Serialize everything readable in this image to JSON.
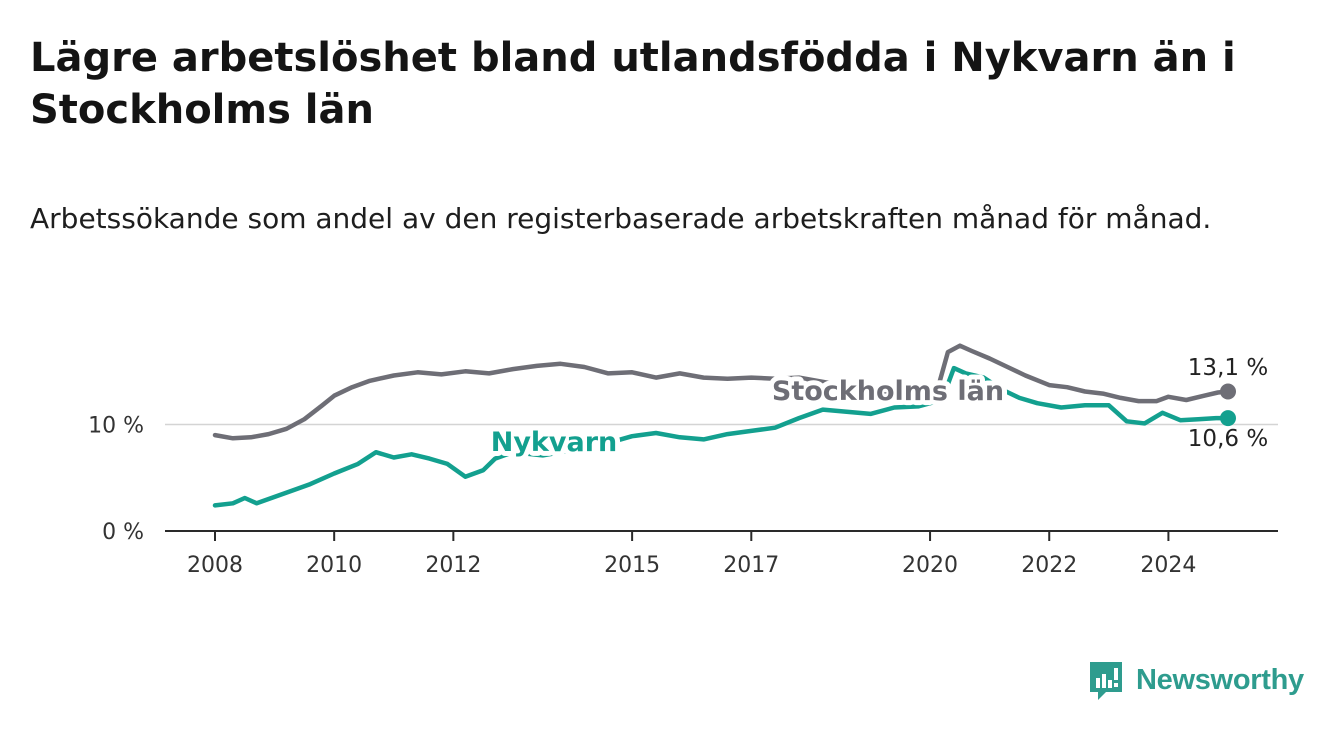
{
  "title": "Lägre arbetslöshet bland utlandsfödda i Nykvarn än i Stockholms län",
  "subtitle": "Arbetssökande som andel av den registerbaserade arbetskraften månad för månad.",
  "brand": {
    "name": "Newsworthy",
    "color": "#2e9c8e"
  },
  "chart_data": {
    "type": "line",
    "ylim": [
      0,
      20
    ],
    "xlim": [
      2008.0,
      2025.0
    ],
    "grid": "horizontal",
    "y_ticks": [
      {
        "value": 0,
        "label": "0 %"
      },
      {
        "value": 10,
        "label": "10 %"
      }
    ],
    "x_ticks": [
      {
        "value": 2008,
        "label": "2008"
      },
      {
        "value": 2010,
        "label": "2010"
      },
      {
        "value": 2012,
        "label": "2012"
      },
      {
        "value": 2015,
        "label": "2015"
      },
      {
        "value": 2017,
        "label": "2017"
      },
      {
        "value": 2020,
        "label": "2020"
      },
      {
        "value": 2022,
        "label": "2022"
      },
      {
        "value": 2024,
        "label": "2024"
      }
    ],
    "series": [
      {
        "name": "Stockholms län",
        "color": "#6e6e76",
        "end_label": "13,1 %",
        "points": [
          [
            2008.0,
            9.0
          ],
          [
            2008.3,
            8.7
          ],
          [
            2008.6,
            8.8
          ],
          [
            2008.9,
            9.1
          ],
          [
            2009.2,
            9.6
          ],
          [
            2009.5,
            10.5
          ],
          [
            2009.8,
            11.8
          ],
          [
            2010.0,
            12.7
          ],
          [
            2010.3,
            13.5
          ],
          [
            2010.6,
            14.1
          ],
          [
            2011.0,
            14.6
          ],
          [
            2011.4,
            14.9
          ],
          [
            2011.8,
            14.7
          ],
          [
            2012.2,
            15.0
          ],
          [
            2012.6,
            14.8
          ],
          [
            2013.0,
            15.2
          ],
          [
            2013.4,
            15.5
          ],
          [
            2013.8,
            15.7
          ],
          [
            2014.2,
            15.4
          ],
          [
            2014.6,
            14.8
          ],
          [
            2015.0,
            14.9
          ],
          [
            2015.4,
            14.4
          ],
          [
            2015.8,
            14.8
          ],
          [
            2016.2,
            14.4
          ],
          [
            2016.6,
            14.3
          ],
          [
            2017.0,
            14.4
          ],
          [
            2017.4,
            14.3
          ],
          [
            2017.8,
            14.4
          ],
          [
            2018.2,
            14.0
          ],
          [
            2018.6,
            13.6
          ],
          [
            2019.0,
            13.4
          ],
          [
            2019.4,
            12.6
          ],
          [
            2019.8,
            12.2
          ],
          [
            2020.1,
            12.8
          ],
          [
            2020.3,
            16.8
          ],
          [
            2020.5,
            17.4
          ],
          [
            2020.7,
            16.9
          ],
          [
            2021.0,
            16.2
          ],
          [
            2021.3,
            15.4
          ],
          [
            2021.6,
            14.6
          ],
          [
            2022.0,
            13.7
          ],
          [
            2022.3,
            13.5
          ],
          [
            2022.6,
            13.1
          ],
          [
            2022.9,
            12.9
          ],
          [
            2023.2,
            12.5
          ],
          [
            2023.5,
            12.2
          ],
          [
            2023.8,
            12.2
          ],
          [
            2024.0,
            12.6
          ],
          [
            2024.3,
            12.3
          ],
          [
            2024.6,
            12.7
          ],
          [
            2024.83,
            13.0
          ],
          [
            2025.0,
            13.1
          ]
        ]
      },
      {
        "name": "Nykvarn",
        "color": "#13a08f",
        "end_label": "10,6 %",
        "points": [
          [
            2008.0,
            2.4
          ],
          [
            2008.3,
            2.6
          ],
          [
            2008.5,
            3.1
          ],
          [
            2008.7,
            2.6
          ],
          [
            2009.0,
            3.2
          ],
          [
            2009.3,
            3.8
          ],
          [
            2009.6,
            4.4
          ],
          [
            2010.0,
            5.4
          ],
          [
            2010.4,
            6.3
          ],
          [
            2010.7,
            7.4
          ],
          [
            2011.0,
            6.9
          ],
          [
            2011.3,
            7.2
          ],
          [
            2011.6,
            6.8
          ],
          [
            2011.9,
            6.3
          ],
          [
            2012.2,
            5.1
          ],
          [
            2012.5,
            5.7
          ],
          [
            2012.7,
            6.8
          ],
          [
            2013.0,
            7.4
          ],
          [
            2013.5,
            7.1
          ],
          [
            2014.0,
            7.6
          ],
          [
            2014.5,
            8.1
          ],
          [
            2015.0,
            8.9
          ],
          [
            2015.4,
            9.2
          ],
          [
            2015.8,
            8.8
          ],
          [
            2016.2,
            8.6
          ],
          [
            2016.6,
            9.1
          ],
          [
            2017.0,
            9.4
          ],
          [
            2017.4,
            9.7
          ],
          [
            2017.8,
            10.6
          ],
          [
            2018.2,
            11.4
          ],
          [
            2018.6,
            11.2
          ],
          [
            2019.0,
            11.0
          ],
          [
            2019.4,
            11.6
          ],
          [
            2019.8,
            11.7
          ],
          [
            2020.2,
            12.3
          ],
          [
            2020.4,
            15.3
          ],
          [
            2020.6,
            14.8
          ],
          [
            2020.9,
            14.4
          ],
          [
            2021.2,
            13.3
          ],
          [
            2021.5,
            12.5
          ],
          [
            2021.8,
            12.0
          ],
          [
            2022.2,
            11.6
          ],
          [
            2022.6,
            11.8
          ],
          [
            2023.0,
            11.8
          ],
          [
            2023.3,
            10.3
          ],
          [
            2023.6,
            10.1
          ],
          [
            2023.9,
            11.1
          ],
          [
            2024.2,
            10.4
          ],
          [
            2024.5,
            10.5
          ],
          [
            2024.8,
            10.6
          ],
          [
            2025.0,
            10.6
          ]
        ]
      }
    ]
  }
}
